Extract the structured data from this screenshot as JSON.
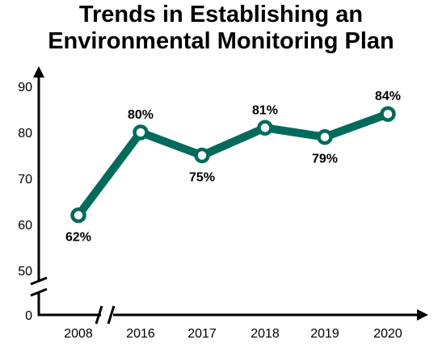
{
  "title_lines": [
    "Trends in Establishing an",
    "Environmental Monitoring Plan"
  ],
  "colors": {
    "line": "#006b5b",
    "axis": "#000000",
    "marker_fill": "#ffffff",
    "text": "#000000"
  },
  "chart_data": {
    "type": "line",
    "title": "Trends in Establishing an Environmental Monitoring Plan",
    "xlabel": "",
    "ylabel": "",
    "categories": [
      "2008",
      "2016",
      "2017",
      "2018",
      "2019",
      "2020"
    ],
    "values": [
      62,
      80,
      75,
      81,
      79,
      84
    ],
    "data_labels": [
      "62%",
      "80%",
      "75%",
      "81%",
      "79%",
      "84%"
    ],
    "y_ticks": [
      0,
      50,
      60,
      70,
      80,
      90
    ],
    "ylim": [
      0,
      90
    ],
    "y_axis_break": true,
    "x_axis_break": "between 2008 and 2016",
    "grid": false,
    "legend": "none",
    "markers": "hollow circles"
  }
}
